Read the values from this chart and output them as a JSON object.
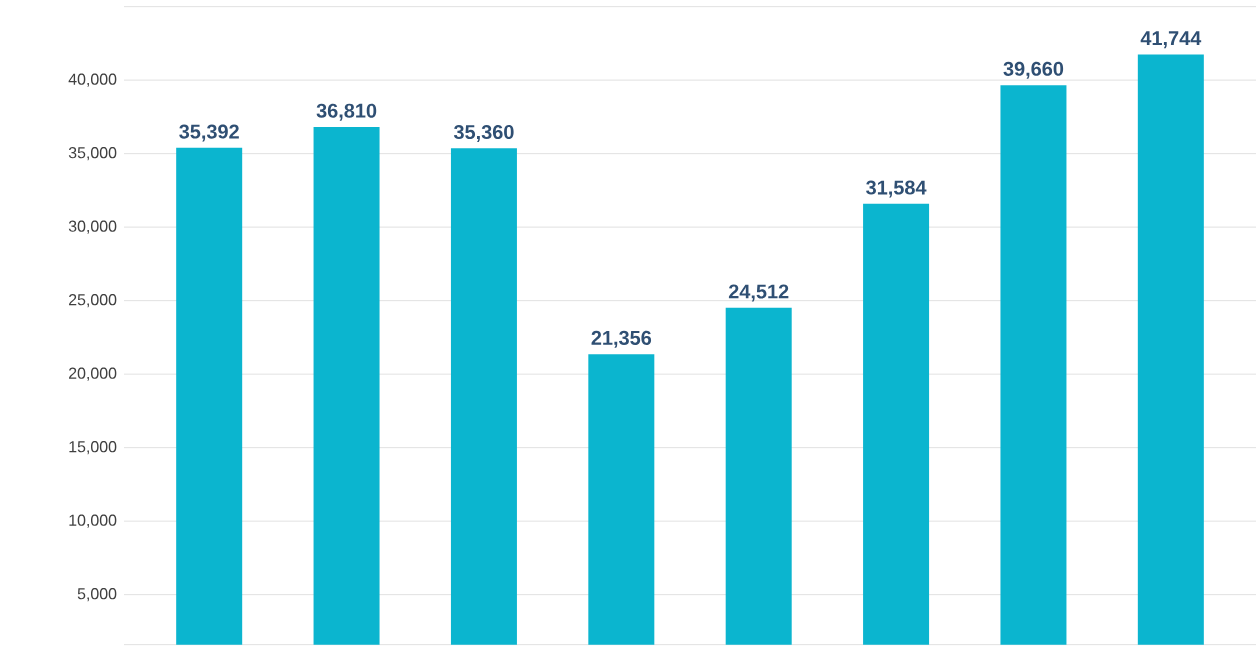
{
  "chart_data": {
    "type": "bar",
    "categories": [
      null,
      null,
      null,
      null,
      null,
      null,
      null,
      null
    ],
    "values": [
      35392,
      36810,
      35360,
      21356,
      24512,
      31584,
      39660,
      41744
    ],
    "value_labels": [
      "35,392",
      "36,810",
      "35,360",
      "21,356",
      "24,512",
      "31,584",
      "39,660",
      "41,744"
    ],
    "color": "#0bb5cf",
    "ylim": [
      1600,
      45000
    ],
    "yticks": [
      {
        "value": 5000,
        "label": "5,000"
      },
      {
        "value": 10000,
        "label": "10,000"
      },
      {
        "value": 15000,
        "label": "15,000"
      },
      {
        "value": 20000,
        "label": "20,000"
      },
      {
        "value": 25000,
        "label": "25,000"
      },
      {
        "value": 30000,
        "label": "30,000"
      },
      {
        "value": 35000,
        "label": "35,000"
      },
      {
        "value": 40000,
        "label": "40,000"
      },
      {
        "value": 45000,
        "label": null
      }
    ],
    "grid": "y"
  }
}
